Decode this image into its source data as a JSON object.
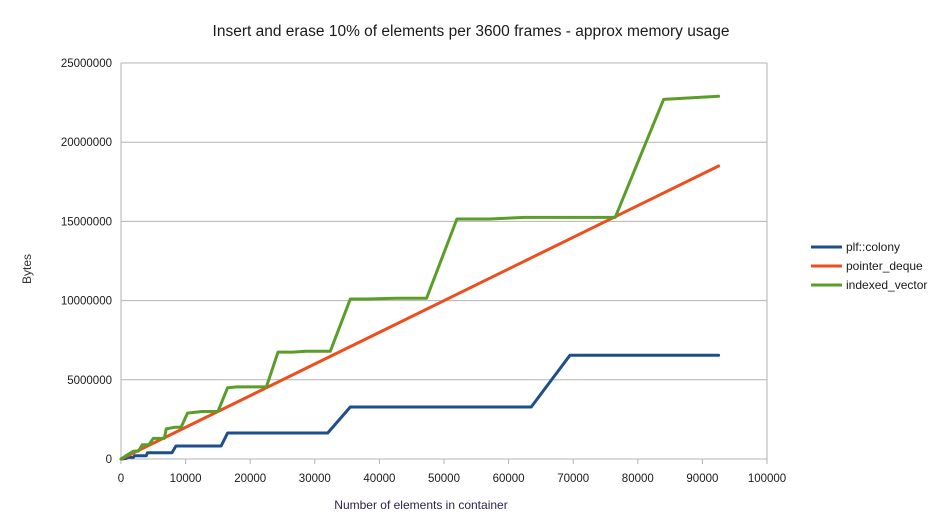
{
  "chart_data": {
    "type": "line",
    "title": "Insert and erase 10% of elements per 3600 frames - approx memory usage",
    "xlabel": "Number of elements in container",
    "ylabel": "Bytes",
    "xlim": [
      0,
      100000
    ],
    "ylim": [
      0,
      25000000
    ],
    "xticks": [
      0,
      10000,
      20000,
      30000,
      40000,
      50000,
      60000,
      70000,
      80000,
      90000,
      100000
    ],
    "yticks": [
      0,
      5000000,
      10000000,
      15000000,
      20000000,
      25000000
    ],
    "xtick_labels": [
      "0",
      "10000",
      "20000",
      "30000",
      "40000",
      "50000",
      "60000",
      "70000",
      "80000",
      "90000",
      "100000"
    ],
    "ytick_labels": [
      "0",
      "5000000",
      "10000000",
      "15000000",
      "20000000",
      "25000000"
    ],
    "grid": "horizontal",
    "legend_position": "right",
    "series": [
      {
        "name": "plf::colony",
        "color": "#1f4e8c",
        "points": [
          [
            0,
            0
          ],
          [
            800,
            40000
          ],
          [
            1000,
            100000
          ],
          [
            1900,
            100000
          ],
          [
            2100,
            200000
          ],
          [
            3900,
            200000
          ],
          [
            4100,
            400000
          ],
          [
            7900,
            400000
          ],
          [
            8500,
            820000
          ],
          [
            15500,
            820000
          ],
          [
            16500,
            1640000
          ],
          [
            32000,
            1640000
          ],
          [
            35500,
            3280000
          ],
          [
            63500,
            3280000
          ],
          [
            69500,
            6550000
          ],
          [
            92500,
            6550000
          ]
        ]
      },
      {
        "name": "pointer_deque",
        "color": "#ee4d1c",
        "points": [
          [
            0,
            0
          ],
          [
            92500,
            18500000
          ]
        ]
      },
      {
        "name": "indexed_vector",
        "color": "#5a9e29",
        "points": [
          [
            0,
            0
          ],
          [
            1500,
            400000
          ],
          [
            2000,
            500000
          ],
          [
            2700,
            500000
          ],
          [
            3300,
            900000
          ],
          [
            4300,
            900000
          ],
          [
            5000,
            1300000
          ],
          [
            6700,
            1300000
          ],
          [
            7000,
            1900000
          ],
          [
            8300,
            2000000
          ],
          [
            9300,
            2000000
          ],
          [
            10300,
            2900000
          ],
          [
            12500,
            3000000
          ],
          [
            15000,
            3000000
          ],
          [
            16500,
            4500000
          ],
          [
            18000,
            4550000
          ],
          [
            22500,
            4550000
          ],
          [
            24300,
            6750000
          ],
          [
            26600,
            6750000
          ],
          [
            28600,
            6800000
          ],
          [
            32400,
            6800000
          ],
          [
            35500,
            10100000
          ],
          [
            38000,
            10100000
          ],
          [
            42500,
            10150000
          ],
          [
            47300,
            10150000
          ],
          [
            52000,
            15150000
          ],
          [
            57000,
            15150000
          ],
          [
            62500,
            15250000
          ],
          [
            76500,
            15250000
          ],
          [
            84000,
            22700000
          ],
          [
            92500,
            22900000
          ]
        ]
      }
    ]
  }
}
